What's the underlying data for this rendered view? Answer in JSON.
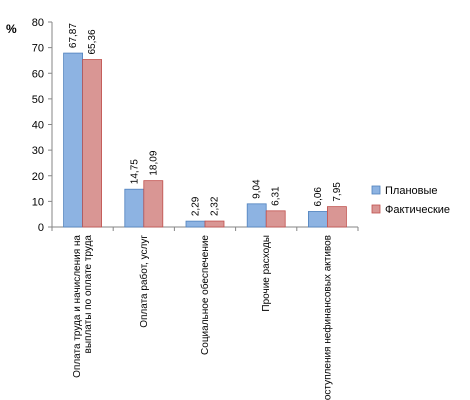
{
  "chart_data": {
    "type": "bar",
    "unit_label": "%",
    "categories": [
      [
        "Оплата труда и начисления на",
        "выплаты по оплате труда"
      ],
      [
        "Оплата работ, услуг"
      ],
      [
        "Социальное обеспечение"
      ],
      [
        "Прочие расходы"
      ],
      [
        "Поступления нефинансовых активов"
      ]
    ],
    "series": [
      {
        "name": "Плановые",
        "values": [
          67.87,
          14.75,
          2.29,
          9.04,
          6.06
        ],
        "labels": [
          "67,87",
          "14,75",
          "2,29",
          "9,04",
          "6,06"
        ],
        "color": "#8DB3E2",
        "stroke": "#4F81BD"
      },
      {
        "name": "Фактические",
        "values": [
          65.36,
          18.09,
          2.32,
          6.31,
          7.95
        ],
        "labels": [
          "65,36",
          "18,09",
          "2,32",
          "6,31",
          "7,95"
        ],
        "color": "#D99694",
        "stroke": "#C0504D"
      }
    ],
    "ylim": [
      0,
      80
    ],
    "yticks": [
      0,
      10,
      20,
      30,
      40,
      50,
      60,
      70,
      80
    ],
    "grid": false,
    "legend_position": "right"
  }
}
